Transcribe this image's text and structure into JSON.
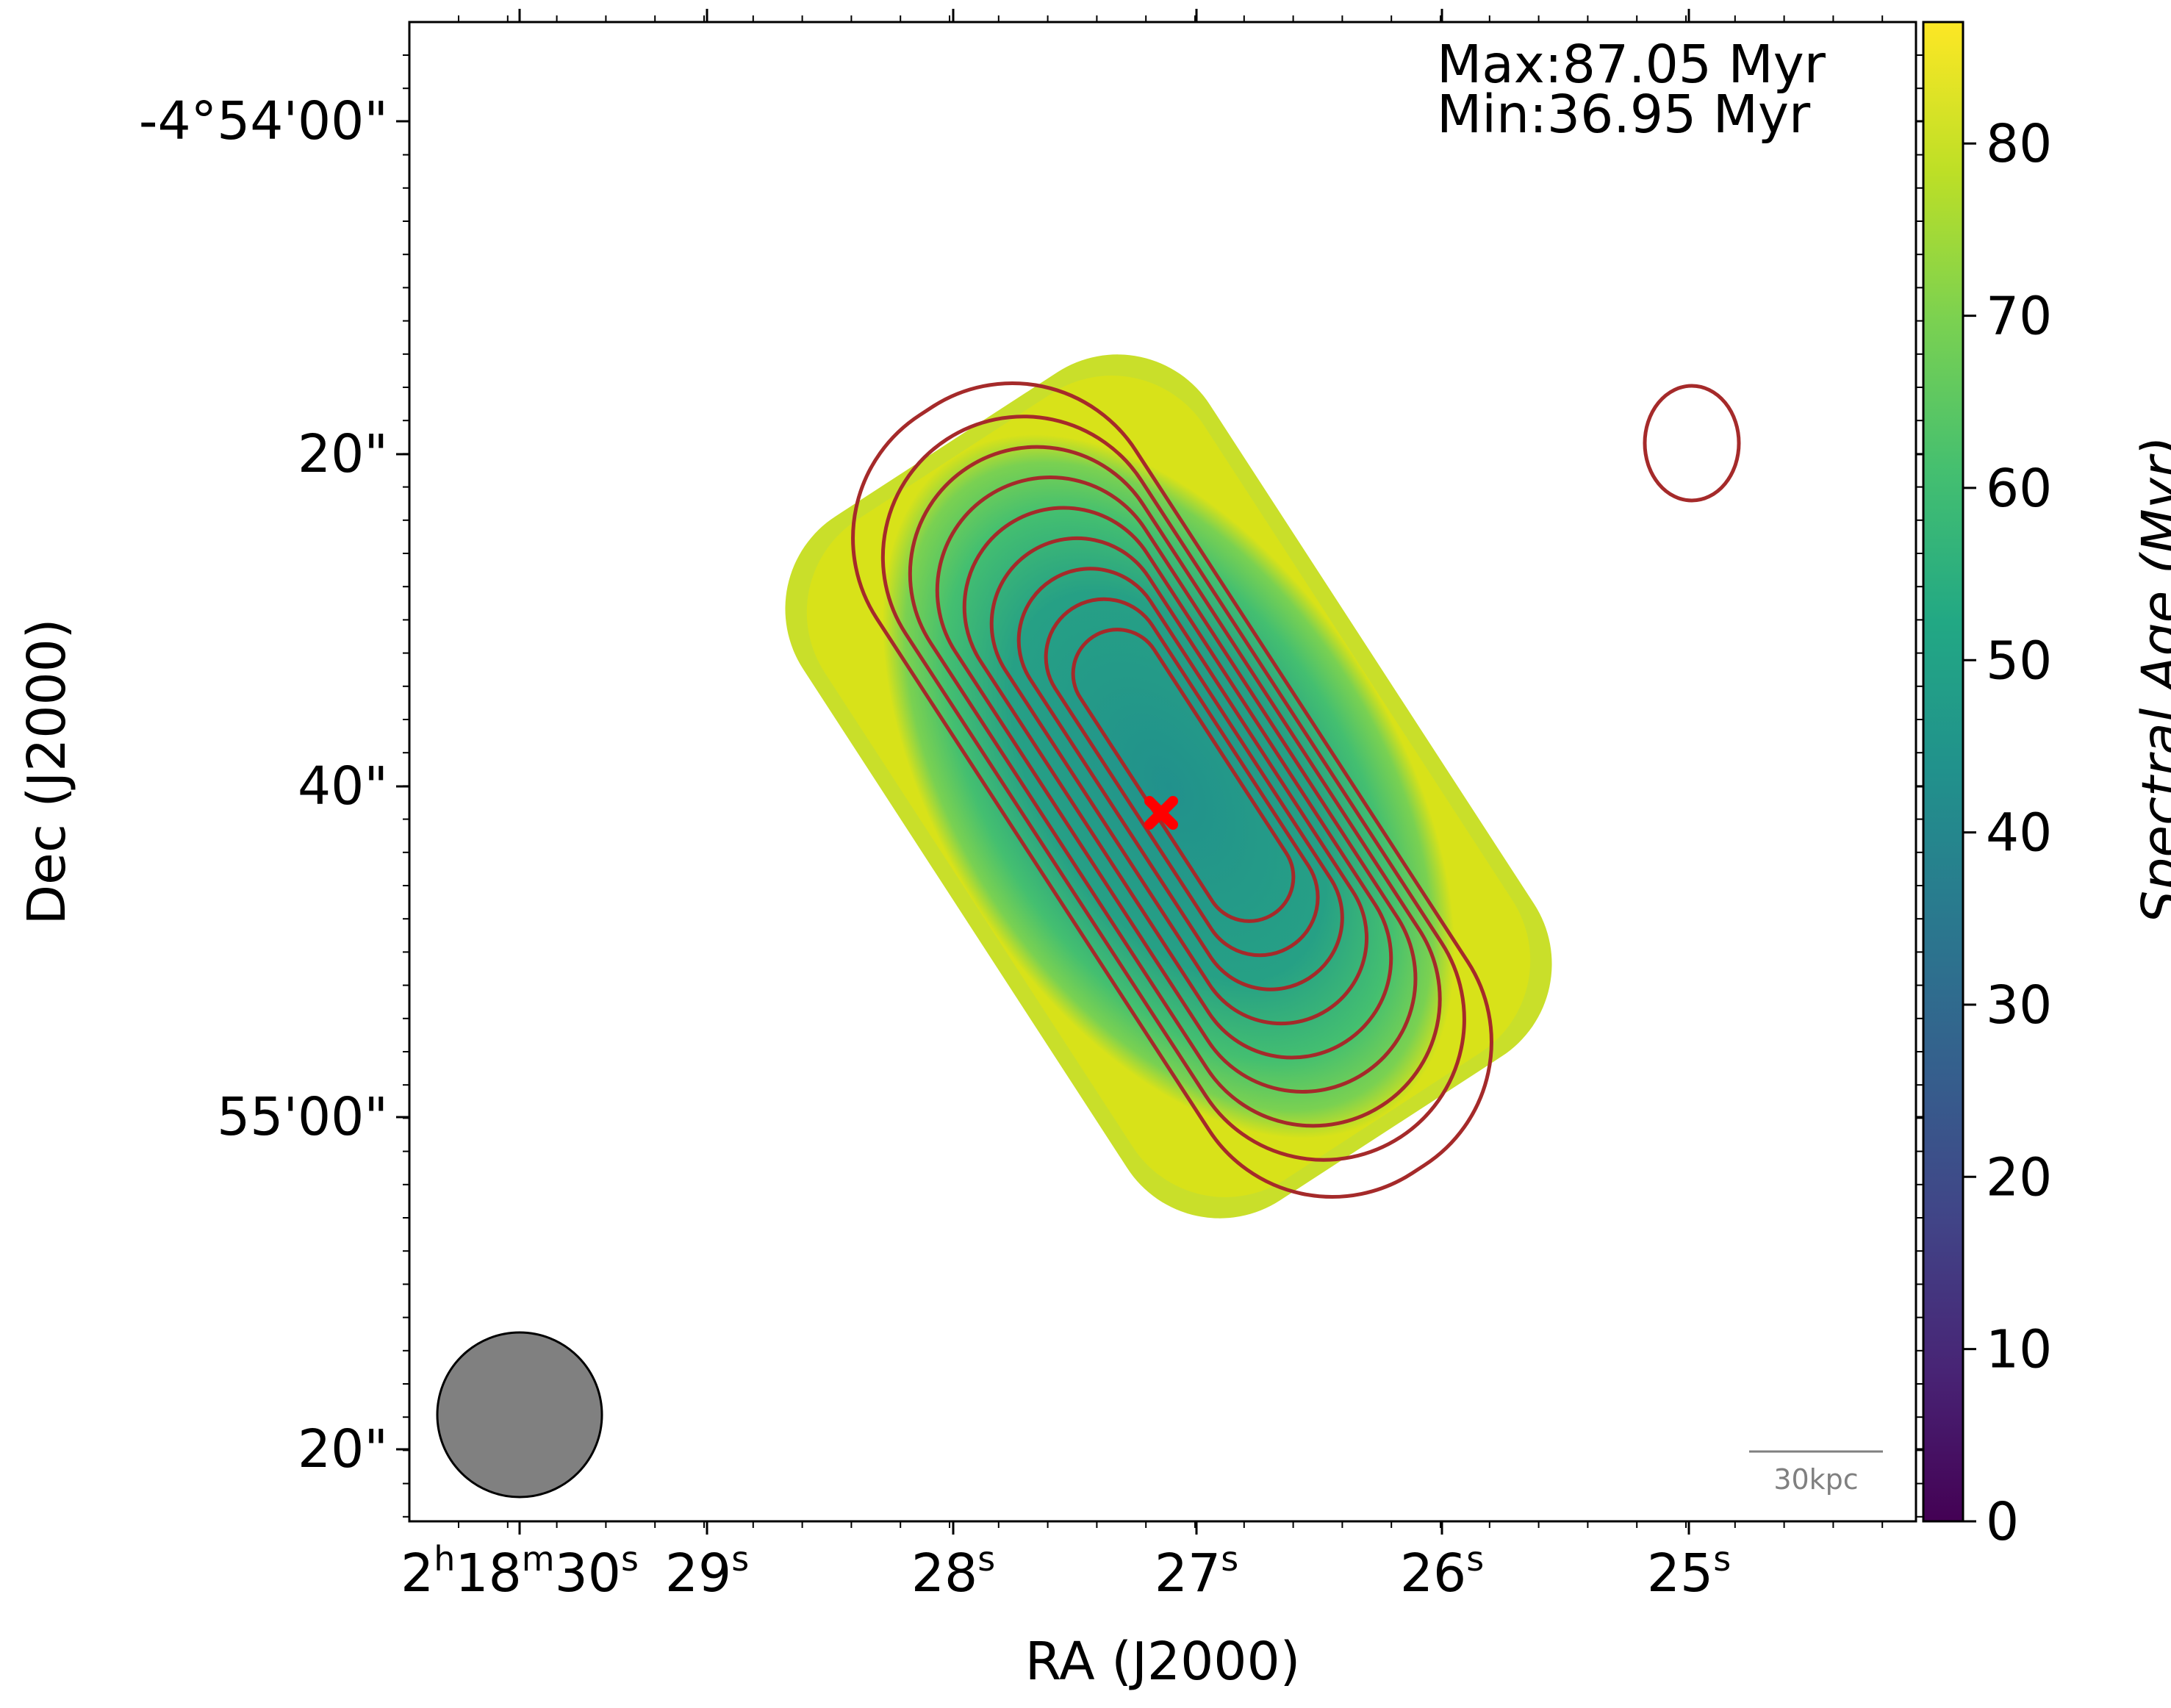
{
  "chart_data": {
    "type": "heatmap",
    "title": "",
    "xlabel": "RA (J2000)",
    "ylabel": "Dec (J2000)",
    "x_ticks": [
      {
        "main": "2",
        "sup1": "h",
        "mid": "18",
        "sup2": "m",
        "sec": "30",
        "sup3": "s"
      },
      {
        "sec": "29",
        "sup3": "s"
      },
      {
        "sec": "28",
        "sup3": "s"
      },
      {
        "sec": "27",
        "sup3": "s"
      },
      {
        "sec": "26",
        "sup3": "s"
      },
      {
        "sec": "25",
        "sup3": "s"
      }
    ],
    "y_ticks": [
      "-4°54'00\"",
      "20\"",
      "40\"",
      "55'00\"",
      "20\""
    ],
    "colorbar": {
      "label": "Spectral Age (Myr)",
      "min": 0,
      "max": 87.05,
      "ticks": [
        0,
        10,
        20,
        30,
        40,
        50,
        60,
        70,
        80
      ],
      "colormap": "viridis"
    },
    "annotations": {
      "max_text": "Max:87.05 Myr",
      "min_text": "Min:36.95 Myr"
    },
    "value_range_myr": [
      36.95,
      87.05
    ],
    "core_value_myr": 40,
    "edge_value_myr": 87,
    "core_marker": {
      "symbol": "x",
      "color": "#ff0000"
    },
    "contour_color": "#a52a2a",
    "contour_levels": 9,
    "beam": {
      "color": "#808080"
    },
    "scalebar": {
      "label": "30kpc"
    }
  }
}
